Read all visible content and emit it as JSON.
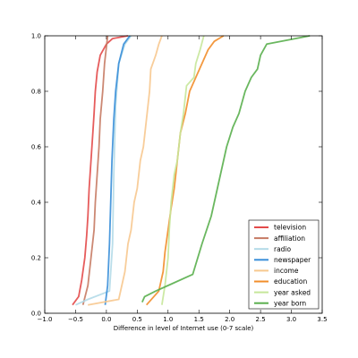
{
  "chart_data": {
    "type": "line",
    "title": "",
    "xlabel": "Difference in level of Internet use (0-7 scale)",
    "ylabel": "",
    "xlim": [
      -1.0,
      3.5
    ],
    "ylim": [
      0.0,
      1.0
    ],
    "xticks": [
      "−1.0",
      "−0.5",
      "0.0",
      "0.5",
      "1.0",
      "1.5",
      "2.0",
      "2.5",
      "3.0",
      "3.5"
    ],
    "yticks": [
      "0.0",
      "0.2",
      "0.4",
      "0.6",
      "0.8",
      "1.0"
    ],
    "grid": false,
    "legend_position": "bottom-right",
    "series": [
      {
        "name": "television",
        "color": "#e34a4a",
        "points": [
          [
            -0.55,
            0.03
          ],
          [
            -0.45,
            0.06
          ],
          [
            -0.4,
            0.12
          ],
          [
            -0.35,
            0.2
          ],
          [
            -0.32,
            0.28
          ],
          [
            -0.3,
            0.35
          ],
          [
            -0.28,
            0.45
          ],
          [
            -0.25,
            0.55
          ],
          [
            -0.22,
            0.65
          ],
          [
            -0.2,
            0.72
          ],
          [
            -0.18,
            0.8
          ],
          [
            -0.15,
            0.87
          ],
          [
            -0.1,
            0.93
          ],
          [
            0.0,
            0.97
          ],
          [
            0.1,
            0.99
          ],
          [
            0.35,
            1.0
          ]
        ]
      },
      {
        "name": "affiliation",
        "color": "#c77b64",
        "points": [
          [
            -0.38,
            0.03
          ],
          [
            -0.3,
            0.1
          ],
          [
            -0.25,
            0.2
          ],
          [
            -0.2,
            0.3
          ],
          [
            -0.18,
            0.4
          ],
          [
            -0.15,
            0.5
          ],
          [
            -0.12,
            0.6
          ],
          [
            -0.1,
            0.7
          ],
          [
            -0.06,
            0.8
          ],
          [
            -0.03,
            0.9
          ],
          [
            0.0,
            0.96
          ],
          [
            0.02,
            1.0
          ]
        ]
      },
      {
        "name": "radio",
        "color": "#b3dae8",
        "points": [
          [
            -0.5,
            0.03
          ],
          [
            -0.3,
            0.05
          ],
          [
            0.05,
            0.08
          ],
          [
            0.1,
            0.25
          ],
          [
            0.12,
            0.5
          ],
          [
            0.15,
            0.75
          ],
          [
            0.2,
            0.9
          ],
          [
            0.3,
            0.97
          ],
          [
            0.4,
            1.0
          ]
        ]
      },
      {
        "name": "newspaper",
        "color": "#3a8fd9",
        "points": [
          [
            -0.02,
            0.03
          ],
          [
            0.02,
            0.1
          ],
          [
            0.05,
            0.25
          ],
          [
            0.07,
            0.4
          ],
          [
            0.09,
            0.55
          ],
          [
            0.12,
            0.7
          ],
          [
            0.15,
            0.8
          ],
          [
            0.2,
            0.9
          ],
          [
            0.28,
            0.97
          ],
          [
            0.38,
            1.0
          ]
        ]
      },
      {
        "name": "income",
        "color": "#f7c88f",
        "points": [
          [
            -0.3,
            0.03
          ],
          [
            0.2,
            0.05
          ],
          [
            0.3,
            0.15
          ],
          [
            0.35,
            0.25
          ],
          [
            0.4,
            0.3
          ],
          [
            0.45,
            0.4
          ],
          [
            0.5,
            0.45
          ],
          [
            0.55,
            0.55
          ],
          [
            0.6,
            0.6
          ],
          [
            0.65,
            0.7
          ],
          [
            0.7,
            0.8
          ],
          [
            0.72,
            0.88
          ],
          [
            0.8,
            0.93
          ],
          [
            0.85,
            0.97
          ],
          [
            0.9,
            1.0
          ]
        ]
      },
      {
        "name": "education",
        "color": "#f28e2b",
        "points": [
          [
            0.65,
            0.03
          ],
          [
            0.85,
            0.08
          ],
          [
            0.92,
            0.15
          ],
          [
            0.95,
            0.22
          ],
          [
            1.0,
            0.3
          ],
          [
            1.05,
            0.38
          ],
          [
            1.1,
            0.45
          ],
          [
            1.15,
            0.55
          ],
          [
            1.2,
            0.65
          ],
          [
            1.28,
            0.72
          ],
          [
            1.35,
            0.8
          ],
          [
            1.45,
            0.85
          ],
          [
            1.55,
            0.9
          ],
          [
            1.65,
            0.95
          ],
          [
            1.75,
            0.98
          ],
          [
            1.9,
            1.0
          ]
        ]
      },
      {
        "name": "year asked",
        "color": "#c6e79a",
        "points": [
          [
            0.9,
            0.03
          ],
          [
            0.95,
            0.1
          ],
          [
            1.0,
            0.2
          ],
          [
            1.02,
            0.3
          ],
          [
            1.05,
            0.4
          ],
          [
            1.1,
            0.5
          ],
          [
            1.15,
            0.55
          ],
          [
            1.2,
            0.65
          ],
          [
            1.25,
            0.72
          ],
          [
            1.3,
            0.82
          ],
          [
            1.42,
            0.85
          ],
          [
            1.45,
            0.9
          ],
          [
            1.52,
            0.95
          ],
          [
            1.58,
            1.0
          ]
        ]
      },
      {
        "name": "year born",
        "color": "#5aaf4e",
        "points": [
          [
            0.58,
            0.04
          ],
          [
            0.62,
            0.06
          ],
          [
            0.8,
            0.08
          ],
          [
            1.0,
            0.1
          ],
          [
            1.4,
            0.14
          ],
          [
            1.55,
            0.25
          ],
          [
            1.7,
            0.35
          ],
          [
            1.8,
            0.45
          ],
          [
            1.85,
            0.5
          ],
          [
            1.95,
            0.6
          ],
          [
            2.05,
            0.67
          ],
          [
            2.15,
            0.72
          ],
          [
            2.25,
            0.8
          ],
          [
            2.35,
            0.85
          ],
          [
            2.45,
            0.88
          ],
          [
            2.5,
            0.93
          ],
          [
            2.6,
            0.97
          ],
          [
            3.3,
            1.0
          ]
        ]
      }
    ]
  }
}
